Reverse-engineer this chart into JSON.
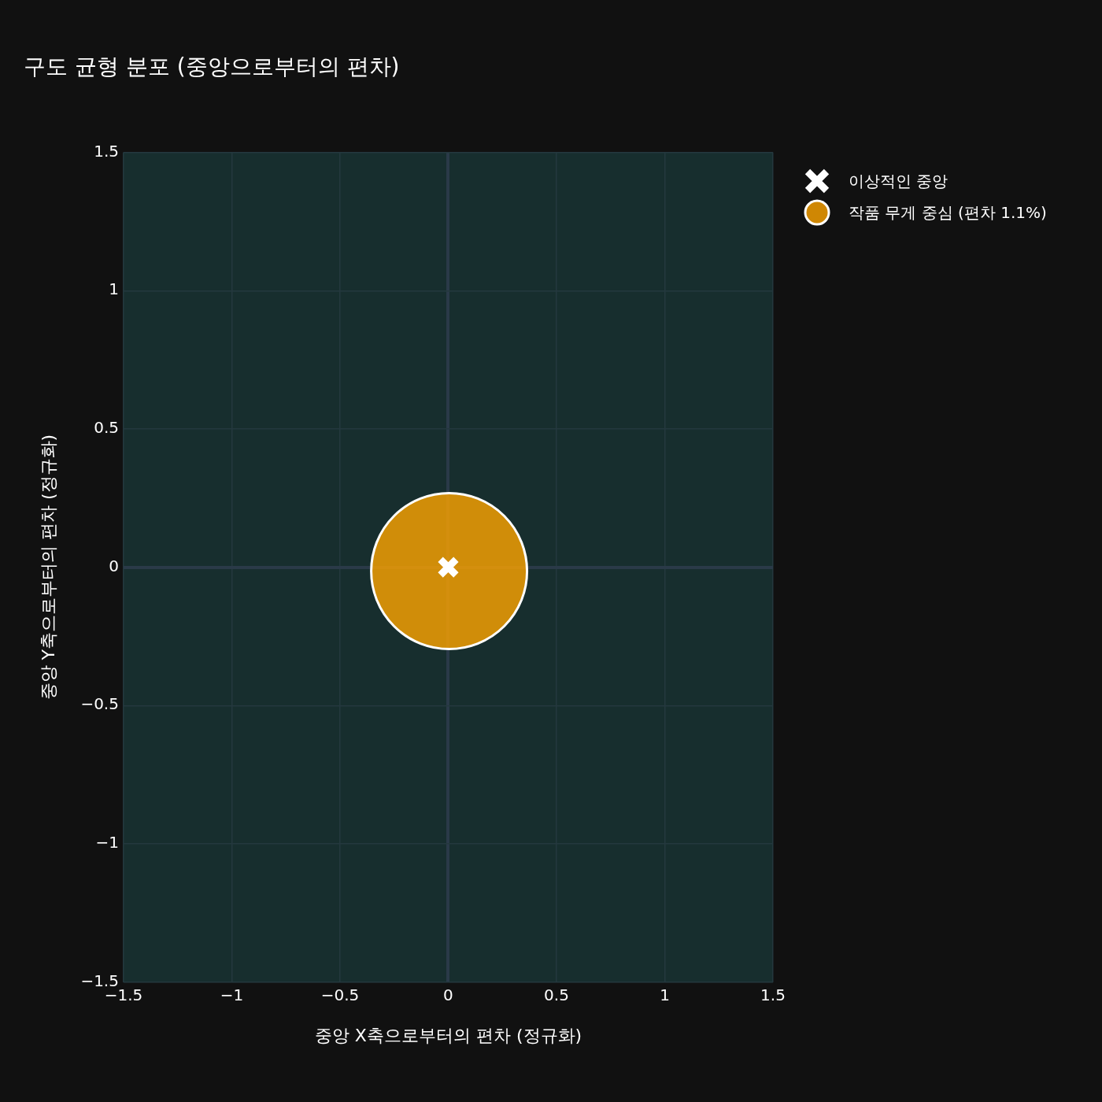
{
  "chart_data": {
    "type": "scatter",
    "title": "구도 균형 분포 (중앙으로부터의 편차)",
    "xlabel": "중앙 X축으로부터의 편차 (정규화)",
    "ylabel": "중앙 Y축으로부터의 편차 (정규화)",
    "xlim": [
      -1.5,
      1.5
    ],
    "ylim": [
      -1.5,
      1.5
    ],
    "xticks": [
      -1.5,
      -1,
      -0.5,
      0,
      0.5,
      1,
      1.5
    ],
    "yticks": [
      -1.5,
      -1,
      -0.5,
      0,
      0.5,
      1,
      1.5
    ],
    "grid": true,
    "legend": "top right",
    "series": [
      {
        "name": "이상적인 중앙",
        "color": "#ffffff",
        "marker": "cross",
        "x": [
          0
        ],
        "values": [
          0
        ]
      },
      {
        "name": "작품 무게 중심 (편차 1.1%)",
        "color": "#ffa500",
        "marker": "circle",
        "x": [
          0.004
        ],
        "values": [
          -0.014
        ]
      }
    ]
  }
}
